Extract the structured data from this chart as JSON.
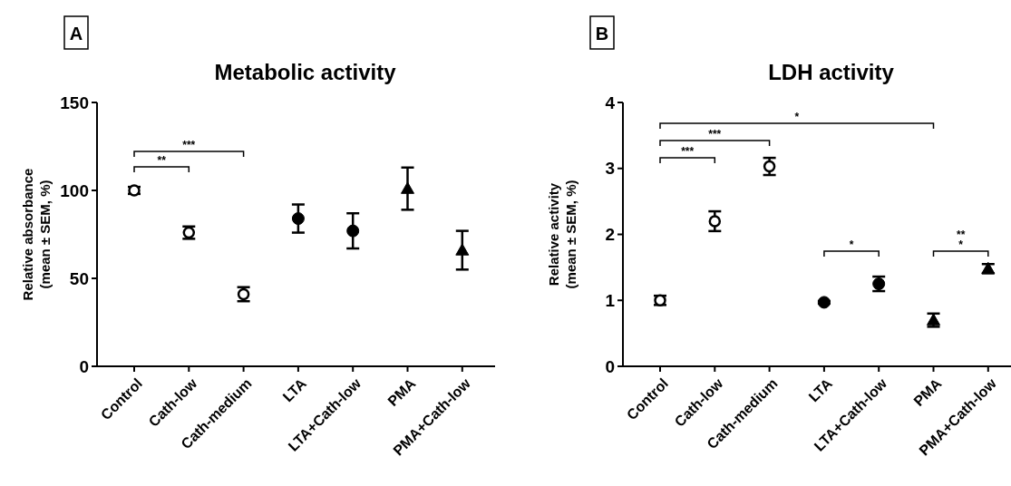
{
  "chart_data": [
    {
      "type": "scatter",
      "title": "Metabolic activity",
      "ylabel": "Relative absorbance\n(mean ± SEM, %)",
      "categories": [
        "Control",
        "Cath-low",
        "Cath-medium",
        "LTA",
        "LTA+Cath-low",
        "PMA",
        "PMA+Cath-low"
      ],
      "ylim": [
        0,
        150
      ],
      "yticks": [
        0,
        50,
        100,
        150
      ],
      "series": [
        {
          "color": "#000000",
          "marker": "circle",
          "values": [
            100,
            76,
            41,
            null,
            null,
            null,
            null
          ],
          "errors": [
            2,
            3.5,
            4,
            null,
            null,
            null,
            null
          ]
        },
        {
          "color": "#000000",
          "marker": "circle",
          "values": [
            null,
            null,
            null,
            84,
            77,
            null,
            null
          ],
          "errors": [
            null,
            null,
            null,
            8,
            10,
            null,
            null
          ]
        },
        {
          "color": "#000000",
          "marker": "triangle",
          "values": [
            null,
            null,
            null,
            null,
            null,
            101,
            66
          ],
          "errors": [
            null,
            null,
            null,
            null,
            null,
            12,
            11
          ]
        }
      ],
      "annotations": [
        "A",
        "**",
        "***"
      ]
    },
    {
      "type": "scatter",
      "title": "LDH activity",
      "ylabel": "Relative activity\n(mean ± SEM, %)",
      "categories": [
        "Control",
        "Cath-low",
        "Cath-medium",
        "LTA",
        "LTA+Cath-low",
        "PMA",
        "PMA+Cath-low"
      ],
      "ylim": [
        0,
        4
      ],
      "yticks": [
        0,
        1,
        2,
        3,
        4
      ],
      "series": [
        {
          "color": "#000000",
          "marker": "circle",
          "values": [
            1.0,
            2.2,
            3.03,
            null,
            null,
            null,
            null
          ],
          "errors": [
            0.07,
            0.15,
            0.13,
            null,
            null,
            null,
            null
          ]
        },
        {
          "color": "#000000",
          "marker": "circle",
          "values": [
            null,
            null,
            null,
            0.97,
            1.25,
            null,
            null
          ],
          "errors": [
            null,
            null,
            null,
            0.02,
            0.11,
            null,
            null
          ]
        },
        {
          "color": "#000000",
          "marker": "triangle",
          "values": [
            null,
            null,
            null,
            null,
            null,
            0.7,
            1.48
          ],
          "errors": [
            null,
            null,
            null,
            null,
            null,
            0.1,
            0.07
          ]
        }
      ],
      "annotations": [
        "B",
        "***",
        "***",
        "*",
        "*",
        "**",
        "*"
      ]
    }
  ]
}
